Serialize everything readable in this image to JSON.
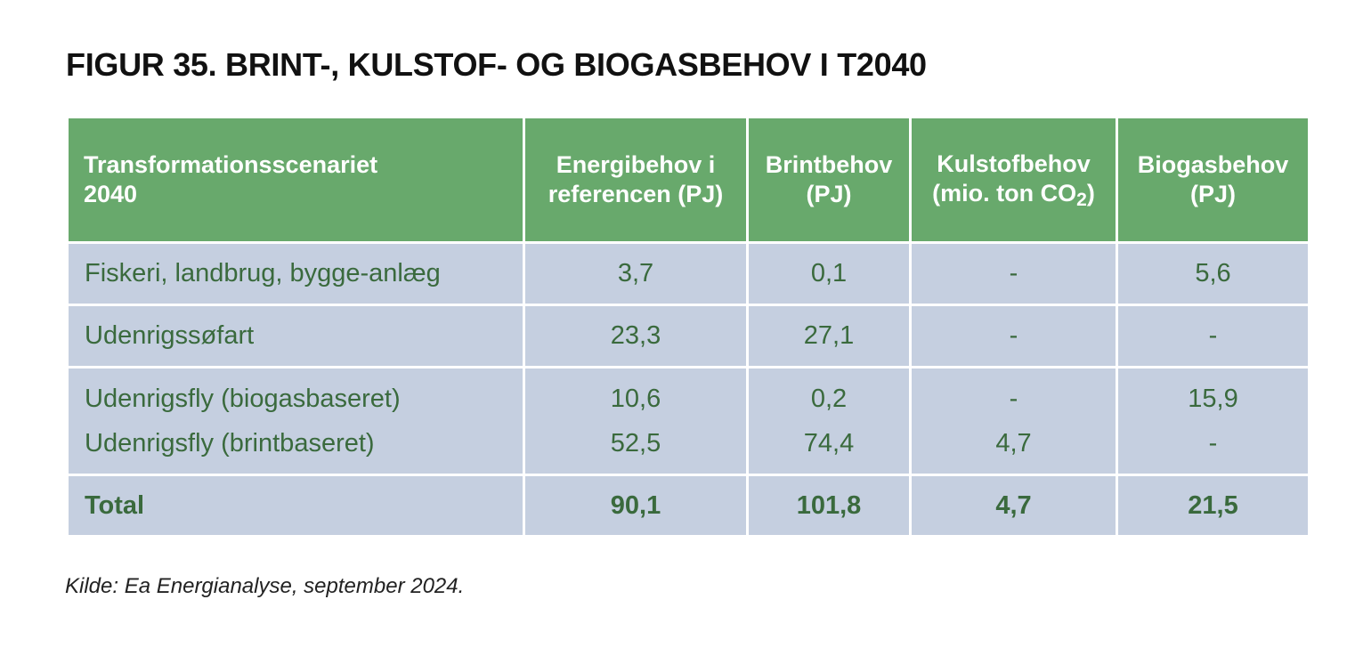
{
  "title": "FIGUR 35. BRINT-, KULSTOF- OG BIOGASBEHOV I T2040",
  "columns": {
    "scenario": [
      "Transformationsscenariet",
      "2040"
    ],
    "energy": [
      "Energibehov i",
      "referencen (PJ)"
    ],
    "hydrogen": [
      "Brintbehov",
      "(PJ)"
    ],
    "carbon": [
      "Kulstofbehov",
      "(mio. ton CO",
      "2",
      ")"
    ],
    "biogas": [
      "Biogasbehov",
      "(PJ)"
    ]
  },
  "rows": [
    {
      "label": "Fiskeri, landbrug, bygge-anlæg",
      "energy": "3,7",
      "hydrogen": "0,1",
      "carbon": "-",
      "biogas": "5,6"
    },
    {
      "label": "Udenrigssøfart",
      "energy": "23,3",
      "hydrogen": "27,1",
      "carbon": "-",
      "biogas": "-"
    },
    {
      "label": "Udenrigsfly (biogasbaseret)",
      "energy": "10,6",
      "hydrogen": "0,2",
      "carbon": "-",
      "biogas": "15,9"
    },
    {
      "label": "Udenrigsfly (brintbaseret)",
      "energy": "52,5",
      "hydrogen": "74,4",
      "carbon": "4,7",
      "biogas": "-"
    }
  ],
  "total": {
    "label": "Total",
    "energy": "90,1",
    "hydrogen": "101,8",
    "carbon": "4,7",
    "biogas": "21,5"
  },
  "source": {
    "label": "Kilde",
    "text": ": Ea Energianalyse, september 2024."
  },
  "colors": {
    "header_bg": "#68a96c",
    "cell_bg": "#c5cfe0",
    "cell_text": "#3a6a3d"
  }
}
